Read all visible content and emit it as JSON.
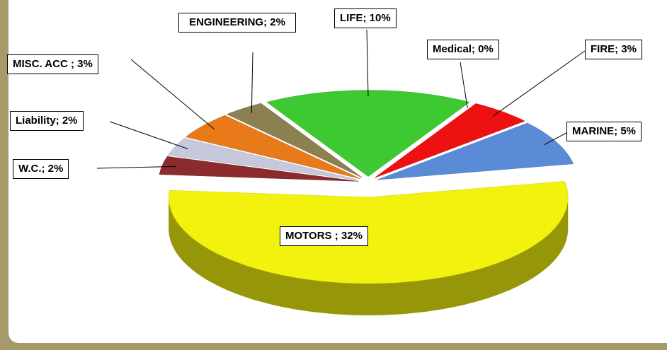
{
  "chart_data": {
    "type": "pie",
    "3d": true,
    "exploded": true,
    "values": [
      10,
      0,
      3,
      5,
      32,
      2,
      2,
      3,
      2
    ],
    "value_labels": [
      "LIFE; 10%",
      "Medical; 0%",
      "FIRE; 3%",
      "MARINE; 5%",
      "MOTORS ; 32%",
      "W.C.; 2%",
      "Liability; 2%",
      "MISC. ACC  ; 3%",
      "ENGINEERING; 2%"
    ],
    "colors": [
      "#3ec832",
      "#e888a8",
      "#ee1111",
      "#5b8bd6",
      "#f2f20e",
      "#8b2b2b",
      "#c8c8dc",
      "#e87a1a",
      "#8b8050"
    ]
  }
}
